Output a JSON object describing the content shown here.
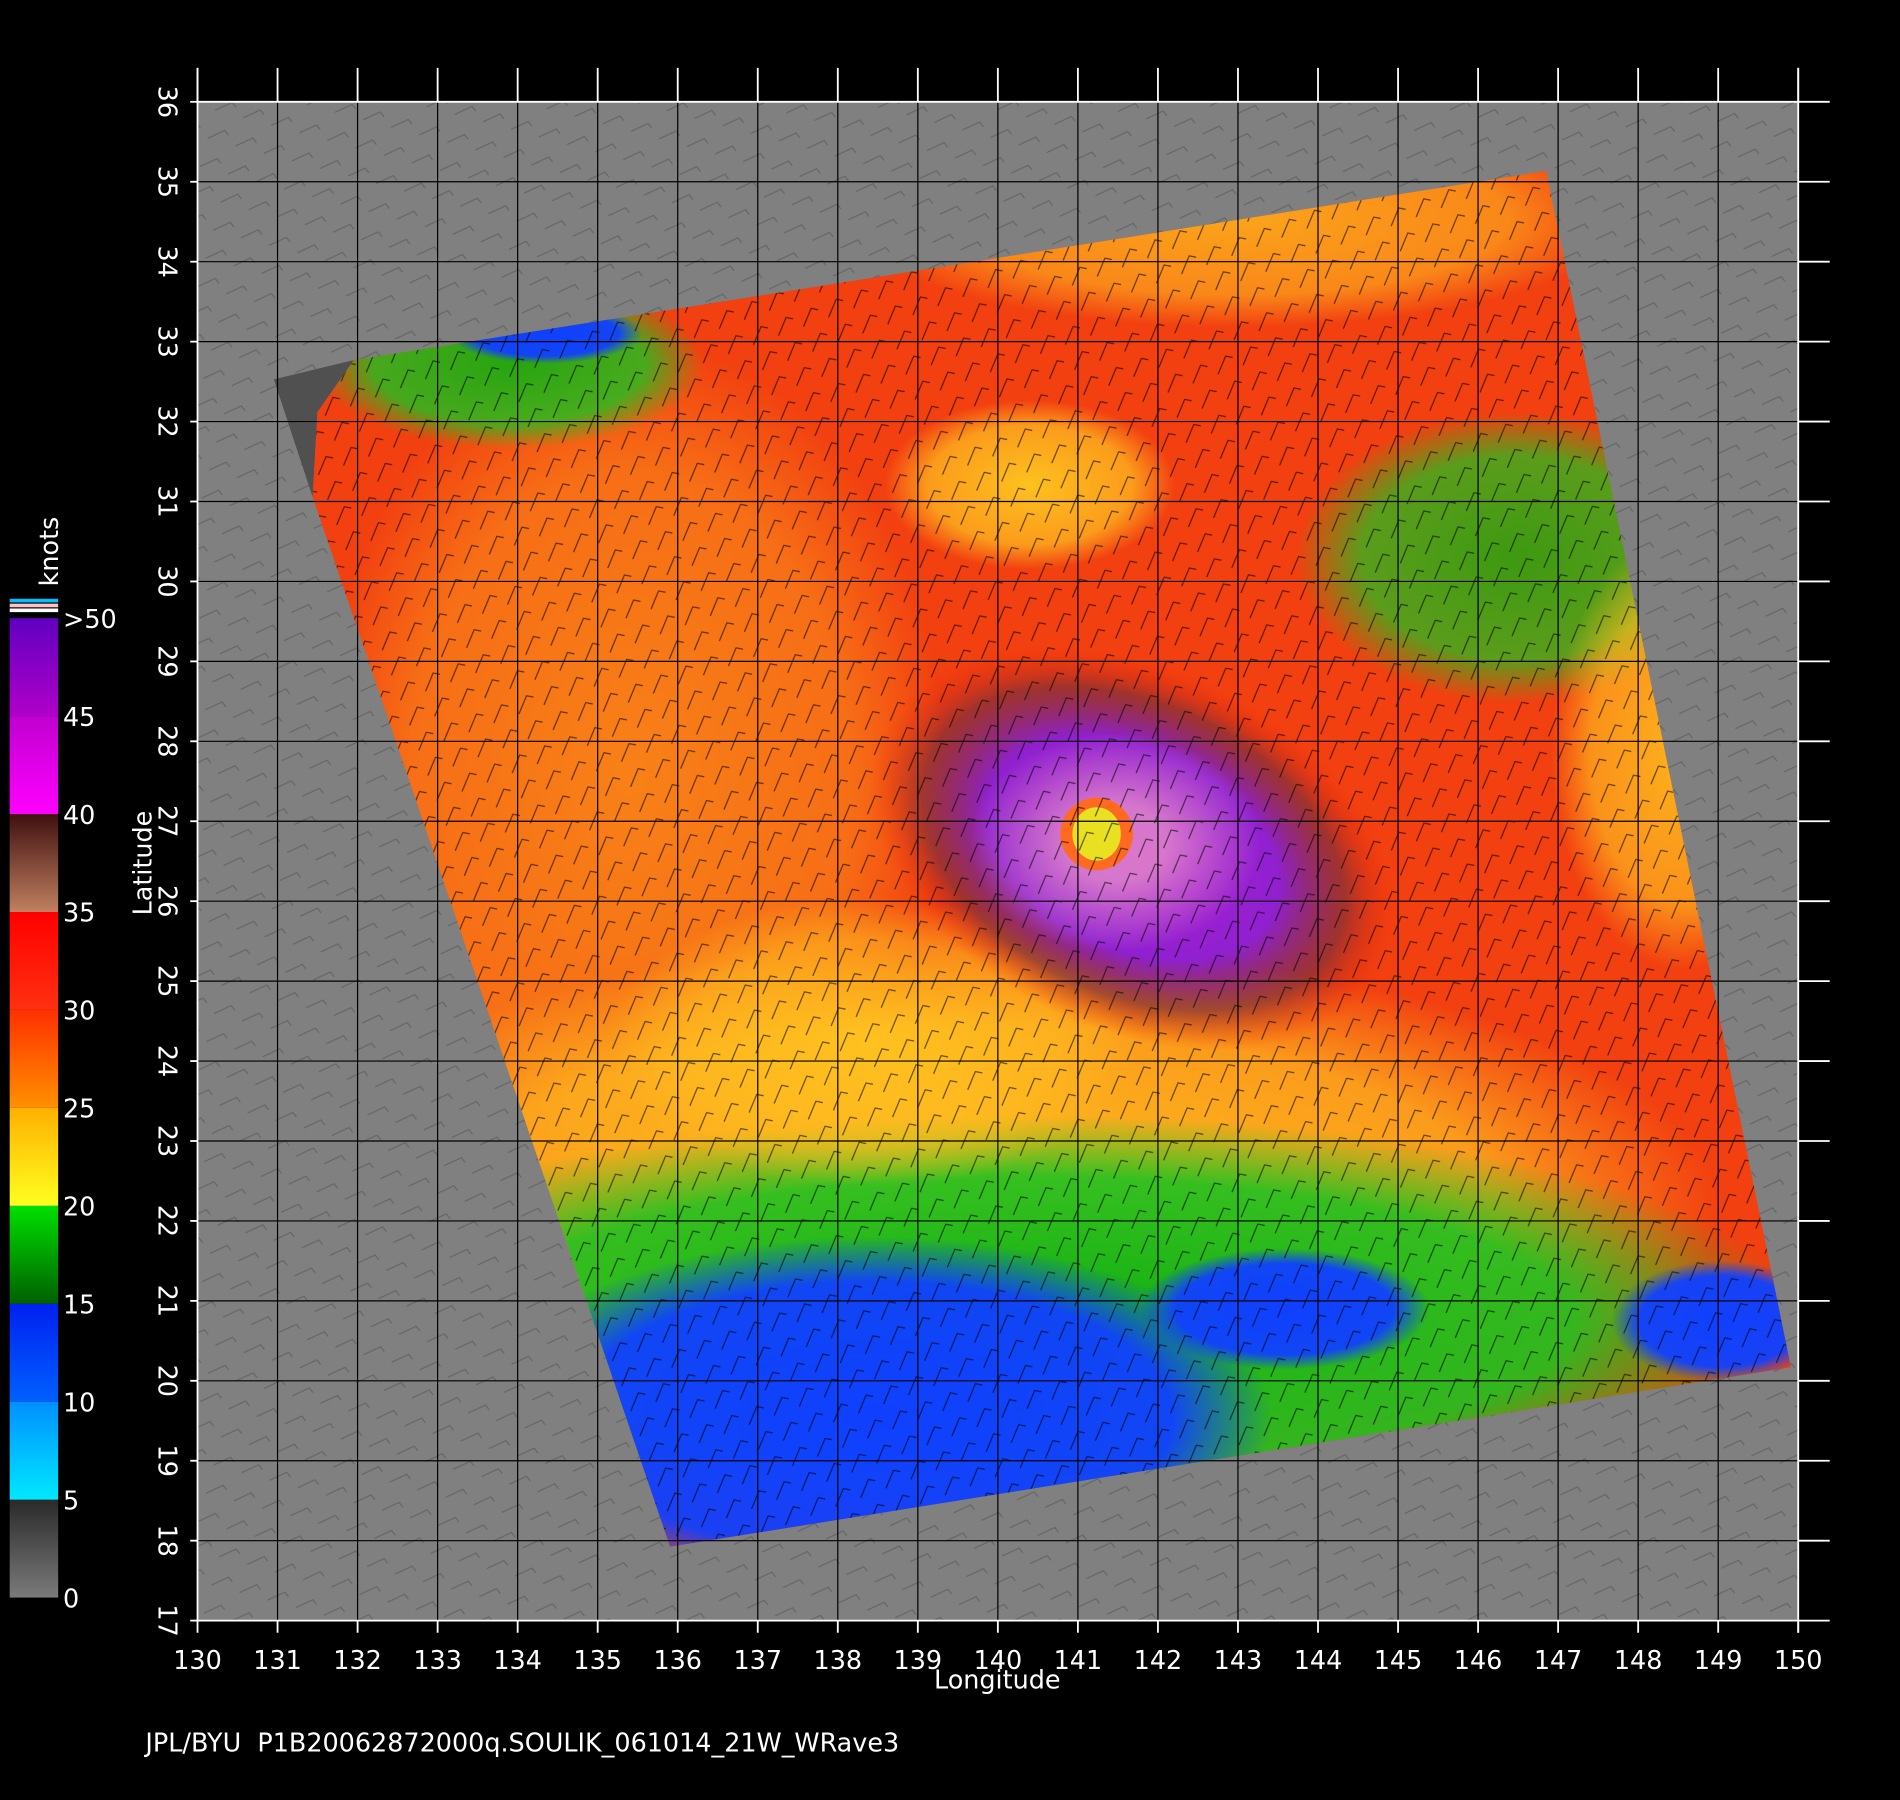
{
  "map": {
    "xlabel": "Longitude",
    "ylabel": "Latitude",
    "xlim": [
      130,
      150
    ],
    "ylim": [
      17,
      36
    ],
    "xticks": [
      130,
      131,
      132,
      133,
      134,
      135,
      136,
      137,
      138,
      139,
      140,
      141,
      142,
      143,
      144,
      145,
      146,
      147,
      148,
      149,
      150
    ],
    "yticks": [
      17,
      18,
      19,
      20,
      21,
      22,
      23,
      24,
      25,
      26,
      27,
      28,
      29,
      30,
      31,
      32,
      33,
      34,
      35,
      36
    ],
    "background": "#808080"
  },
  "colorbar": {
    "title": "knots",
    "lim": [
      0,
      50
    ],
    "ticks": [
      0,
      5,
      10,
      15,
      20,
      25,
      30,
      35,
      40,
      {
        "value": 50,
        "label": ">50"
      }
    ],
    "label_ticks": [
      45
    ],
    "colors": [
      [
        "#7a7a7a",
        "#2a2a2a"
      ],
      [
        "#00e8ff",
        "#0090ff"
      ],
      [
        "#0060ff",
        "#0020f0"
      ],
      [
        "#006000",
        "#00e000"
      ],
      [
        "#ffff20",
        "#ffb000"
      ],
      [
        "#ff9000",
        "#ff3000"
      ],
      [
        "#ff3010",
        "#ff0000"
      ],
      [
        "#c08060",
        "#401010"
      ],
      [
        "#ff00ff",
        "#c000d0"
      ],
      [
        "#b000c8",
        "#6000c0"
      ]
    ]
  },
  "footer": "JPL/BYU  P1B20062872000q.SOULIK_061014_21W_WRave3"
}
